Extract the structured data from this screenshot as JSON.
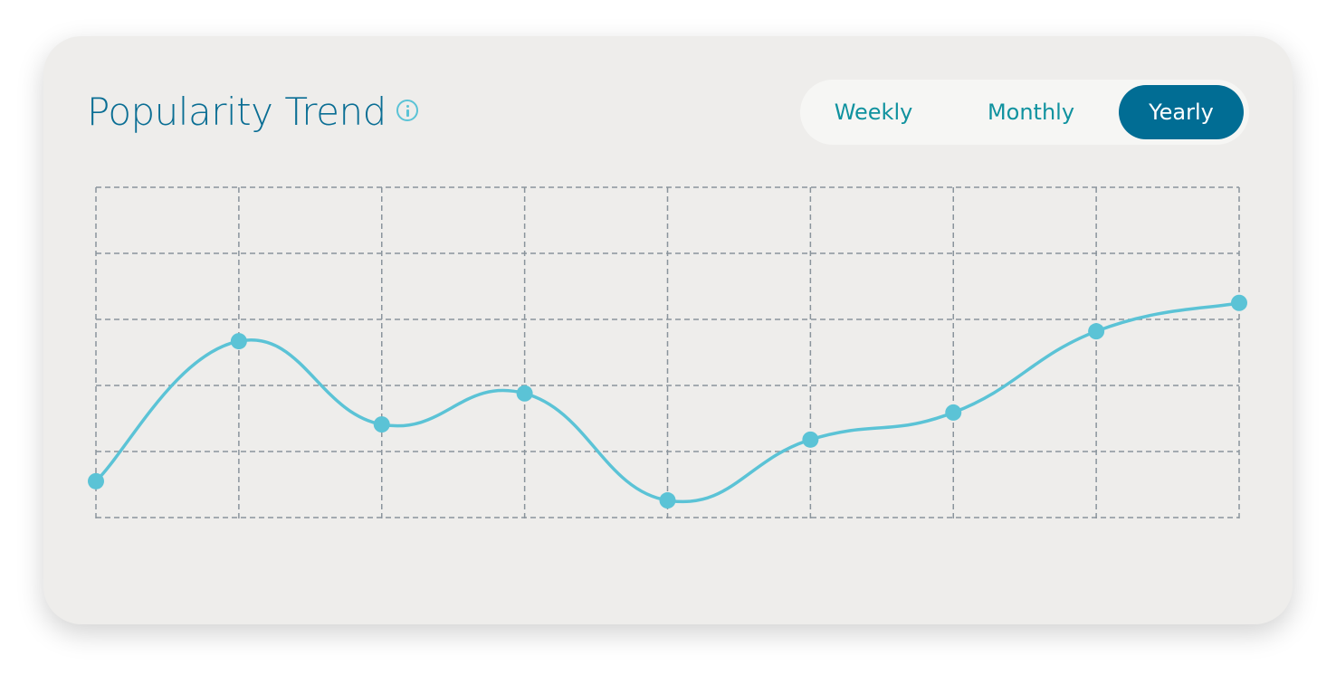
{
  "header": {
    "title": "Popularity Trend",
    "info_icon": "info-circle-icon"
  },
  "toggle": {
    "options": [
      {
        "label": "Weekly"
      },
      {
        "label": "Monthly"
      },
      {
        "label": "Yearly"
      }
    ],
    "selected": "Yearly"
  },
  "colors": {
    "line": "#5bc3d6",
    "title": "#0a6e94",
    "accent": "#016d94",
    "grid": "#8a949c"
  },
  "chart_data": {
    "type": "line",
    "title": "",
    "xlabel": "",
    "ylabel": "",
    "x": [
      0,
      1,
      2,
      3,
      4,
      5,
      6,
      7,
      8
    ],
    "values": [
      0.55,
      2.67,
      1.41,
      1.88,
      0.26,
      1.18,
      1.59,
      2.82,
      3.25
    ],
    "xlim": [
      0,
      8
    ],
    "ylim": [
      0,
      5
    ],
    "grid": true,
    "smooth": true,
    "markers": true,
    "legend": "none"
  }
}
